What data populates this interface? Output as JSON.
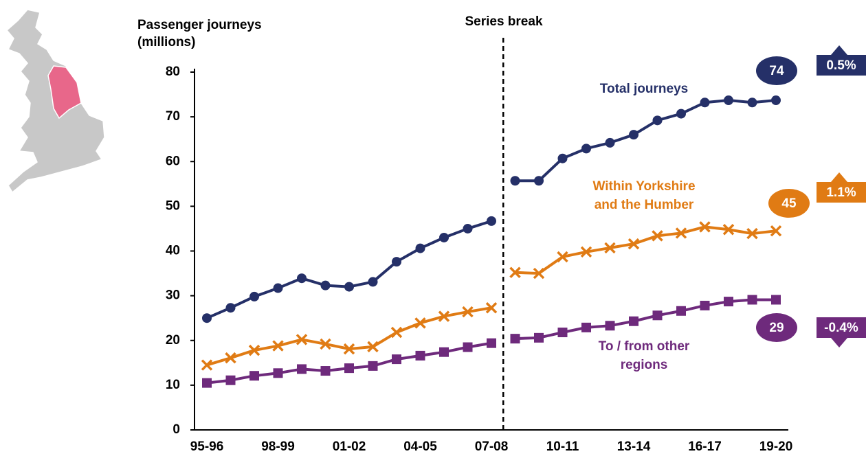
{
  "chart_data": {
    "type": "line",
    "annotation": "Series break",
    "break_after": "07-08",
    "ylabel": [
      "Passenger journeys",
      "(millions)"
    ],
    "categories": [
      "95-96",
      null,
      null,
      "98-99",
      null,
      null,
      "01-02",
      null,
      null,
      "04-05",
      null,
      null,
      "07-08",
      null,
      null,
      "10-11",
      null,
      null,
      "13-14",
      null,
      null,
      "16-17",
      null,
      null,
      "19-20"
    ],
    "ylim": [
      0,
      80
    ],
    "yticks": [
      0,
      10,
      20,
      30,
      40,
      50,
      60,
      70,
      80
    ],
    "series": [
      {
        "name": [
          "Total journeys"
        ],
        "color": "#253068",
        "marker": "circle",
        "values": [
          25.0,
          27.3,
          29.8,
          31.7,
          33.9,
          32.3,
          32.0,
          33.1,
          37.6,
          40.6,
          43.0,
          45.0,
          46.7,
          55.7,
          55.7,
          60.7,
          62.9,
          64.2,
          66.0,
          69.2,
          70.7,
          73.2,
          73.7,
          73.2,
          73.7
        ],
        "end_value": 74,
        "change": {
          "value": 0.5,
          "label": "0.5%"
        }
      },
      {
        "name": [
          "Within Yorkshire",
          "and the Humber"
        ],
        "color": "#e07b14",
        "marker": "x",
        "values": [
          14.5,
          16.1,
          17.8,
          18.8,
          20.2,
          19.2,
          18.1,
          18.6,
          21.8,
          23.9,
          25.4,
          26.4,
          27.3,
          35.2,
          35.0,
          38.7,
          39.8,
          40.7,
          41.6,
          43.4,
          44.0,
          45.4,
          44.8,
          43.9,
          44.5
        ],
        "end_value": 45,
        "change": {
          "value": 1.1,
          "label": "1.1%"
        }
      },
      {
        "name": [
          "To / from other",
          "regions"
        ],
        "color": "#6e2a7c",
        "marker": "square",
        "values": [
          10.5,
          11.1,
          12.1,
          12.7,
          13.6,
          13.2,
          13.8,
          14.3,
          15.8,
          16.6,
          17.4,
          18.5,
          19.4,
          20.4,
          20.6,
          21.8,
          22.9,
          23.3,
          24.3,
          25.6,
          26.6,
          27.8,
          28.7,
          29.1,
          29.1
        ],
        "end_value": 29,
        "change": {
          "value": -0.4,
          "label": "-0.4%"
        }
      }
    ]
  }
}
